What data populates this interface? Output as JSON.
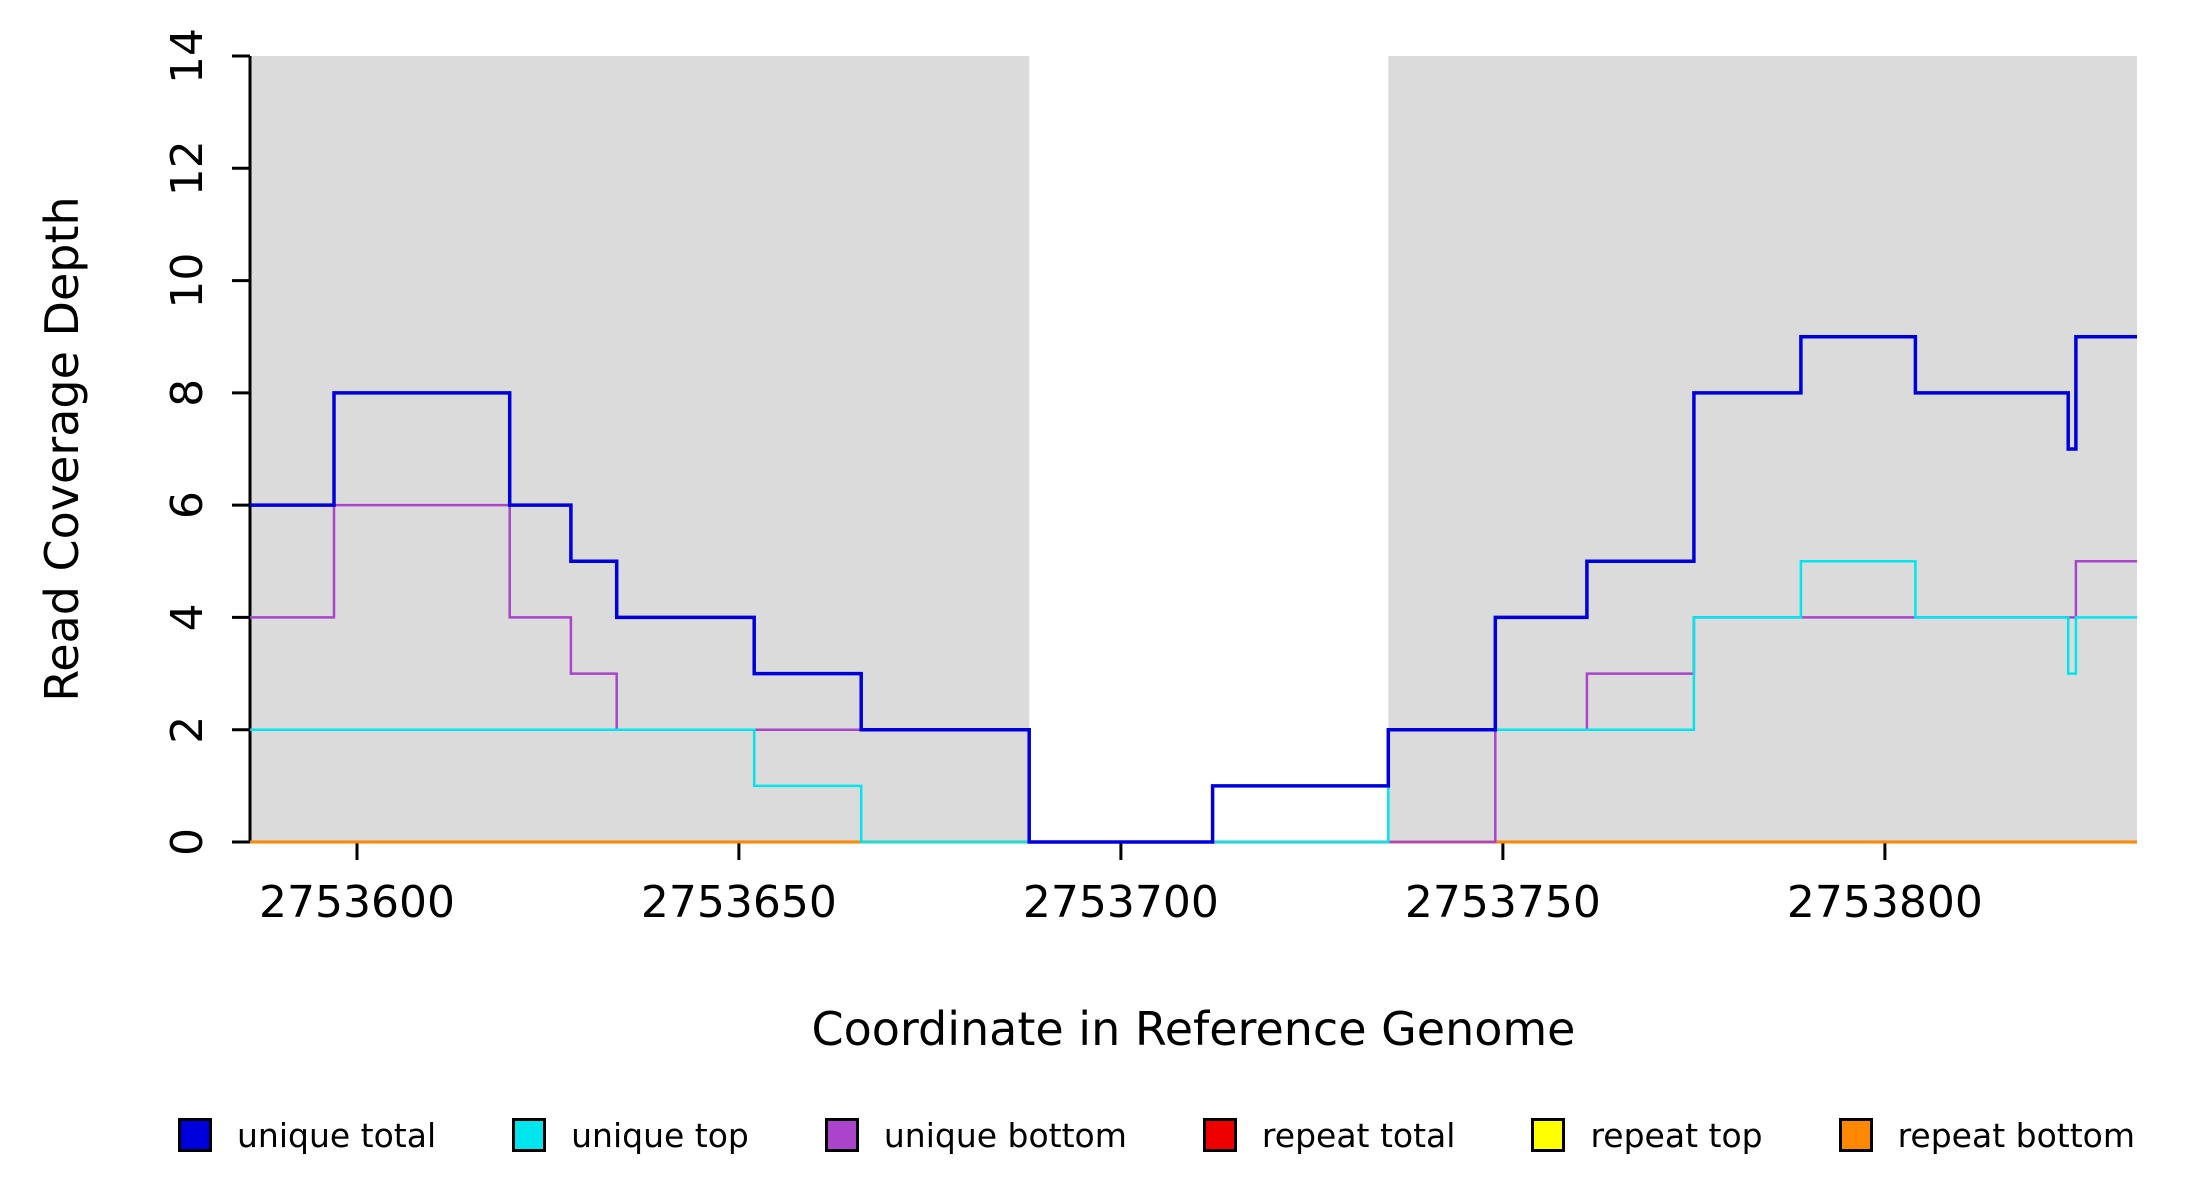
{
  "chart_data": {
    "type": "line",
    "subtype": "step",
    "title": "",
    "xlabel": "Coordinate in Reference Genome",
    "ylabel": "Read Coverage Depth",
    "xlim": [
      2753586,
      2753833
    ],
    "ylim": [
      0,
      14
    ],
    "x_ticks": [
      2753600,
      2753650,
      2753700,
      2753750,
      2753800
    ],
    "y_ticks": [
      0,
      2,
      4,
      6,
      8,
      10,
      12,
      14
    ],
    "grid": false,
    "legend_position": "bottom",
    "background": "#FFFFFF",
    "shaded_regions": [
      {
        "x0": 2753586,
        "x1": 2753688,
        "color": "#DBDBDB"
      },
      {
        "x0": 2753735,
        "x1": 2753833,
        "color": "#DBDBDB"
      }
    ],
    "series": [
      {
        "name": "repeat total",
        "color": "#EE0000",
        "width": 2.5,
        "steps": [
          [
            2753586,
            0
          ]
        ]
      },
      {
        "name": "repeat top",
        "color": "#FFFF00",
        "width": 2.5,
        "steps": [
          [
            2753586,
            0
          ]
        ]
      },
      {
        "name": "repeat bottom",
        "color": "#FF8800",
        "width": 2.5,
        "steps": [
          [
            2753586,
            0
          ]
        ]
      },
      {
        "name": "unique bottom",
        "color": "#AA44CC",
        "width": 2.5,
        "steps": [
          [
            2753586,
            4
          ],
          [
            2753597,
            6
          ],
          [
            2753620,
            4
          ],
          [
            2753628,
            3
          ],
          [
            2753634,
            2
          ],
          [
            2753688,
            0
          ],
          [
            2753749,
            2
          ],
          [
            2753761,
            3
          ],
          [
            2753775,
            4
          ],
          [
            2753825,
            5
          ]
        ]
      },
      {
        "name": "unique top",
        "color": "#00E5EE",
        "width": 2.5,
        "steps": [
          [
            2753586,
            2
          ],
          [
            2753652,
            1
          ],
          [
            2753666,
            0
          ],
          [
            2753735,
            2
          ],
          [
            2753775,
            4
          ],
          [
            2753789,
            5
          ],
          [
            2753804,
            4
          ],
          [
            2753824,
            3
          ],
          [
            2753825,
            4
          ]
        ]
      },
      {
        "name": "unique total",
        "color": "#0000DD",
        "width": 3.5,
        "steps": [
          [
            2753586,
            6
          ],
          [
            2753597,
            8
          ],
          [
            2753620,
            6
          ],
          [
            2753628,
            5
          ],
          [
            2753634,
            4
          ],
          [
            2753652,
            3
          ],
          [
            2753666,
            2
          ],
          [
            2753688,
            0
          ],
          [
            2753712,
            1
          ],
          [
            2753735,
            2
          ],
          [
            2753749,
            4
          ],
          [
            2753761,
            5
          ],
          [
            2753775,
            8
          ],
          [
            2753789,
            9
          ],
          [
            2753804,
            8
          ],
          [
            2753824,
            7
          ],
          [
            2753825,
            9
          ]
        ]
      }
    ],
    "legend": [
      {
        "label": "unique total",
        "color": "#0000DD"
      },
      {
        "label": "unique top",
        "color": "#00E5EE"
      },
      {
        "label": "unique bottom",
        "color": "#AA44CC"
      },
      {
        "label": "repeat total",
        "color": "#EE0000"
      },
      {
        "label": "repeat top",
        "color": "#FFFF00"
      },
      {
        "label": "repeat bottom",
        "color": "#FF8800"
      }
    ]
  }
}
